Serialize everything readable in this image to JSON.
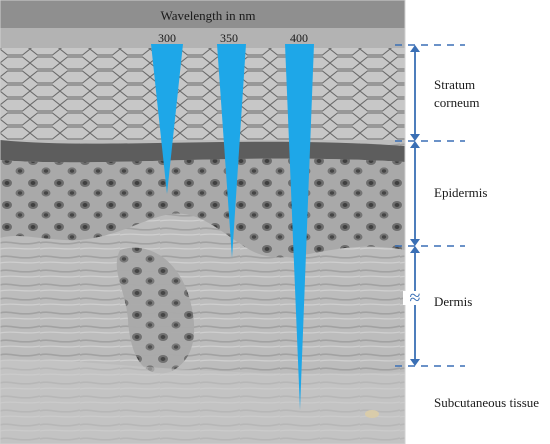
{
  "figure": {
    "wavelength_title": "Wavelength in nm",
    "wavelengths": [
      {
        "label": "300",
        "penetration": "stratum-corneum-to-epidermis"
      },
      {
        "label": "350",
        "penetration": "epidermis"
      },
      {
        "label": "400",
        "penetration": "dermis-to-subcutaneous"
      }
    ],
    "layers": [
      {
        "label": "Stratum\ncorneum"
      },
      {
        "label": "Epidermis"
      },
      {
        "label": "Dermis"
      },
      {
        "label": "Subcutaneous tissue"
      }
    ],
    "dermis_break_symbol": "≈",
    "colors": {
      "beam": "#1ea7e8",
      "bracket": "#3a6fb5",
      "tissue_dark": "#5a5a5a",
      "tissue_light": "#b9b9b9"
    }
  }
}
